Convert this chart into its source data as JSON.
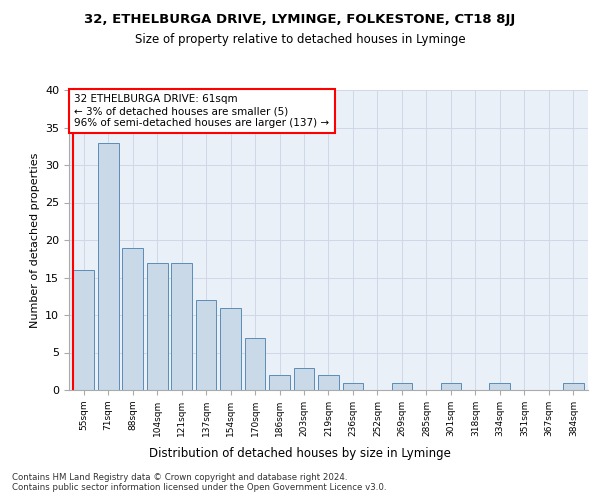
{
  "title1": "32, ETHELBURGA DRIVE, LYMINGE, FOLKESTONE, CT18 8JJ",
  "title2": "Size of property relative to detached houses in Lyminge",
  "xlabel": "Distribution of detached houses by size in Lyminge",
  "ylabel": "Number of detached properties",
  "categories": [
    "55sqm",
    "71sqm",
    "88sqm",
    "104sqm",
    "121sqm",
    "137sqm",
    "154sqm",
    "170sqm",
    "186sqm",
    "203sqm",
    "219sqm",
    "236sqm",
    "252sqm",
    "269sqm",
    "285sqm",
    "301sqm",
    "318sqm",
    "334sqm",
    "351sqm",
    "367sqm",
    "384sqm"
  ],
  "values": [
    16,
    33,
    19,
    17,
    17,
    12,
    11,
    7,
    2,
    3,
    2,
    1,
    0,
    1,
    0,
    1,
    0,
    1,
    0,
    0,
    1
  ],
  "bar_color": "#c9d9e8",
  "bar_edge_color": "#5b8db8",
  "annotation_box_text": "32 ETHELBURGA DRIVE: 61sqm\n← 3% of detached houses are smaller (5)\n96% of semi-detached houses are larger (137) →",
  "annotation_box_color": "white",
  "annotation_box_edge_color": "red",
  "red_line_color": "red",
  "grid_color": "#d0d8e8",
  "background_color": "#eaf0f8",
  "footnote": "Contains HM Land Registry data © Crown copyright and database right 2024.\nContains public sector information licensed under the Open Government Licence v3.0.",
  "ylim": [
    0,
    40
  ],
  "yticks": [
    0,
    5,
    10,
    15,
    20,
    25,
    30,
    35,
    40
  ]
}
